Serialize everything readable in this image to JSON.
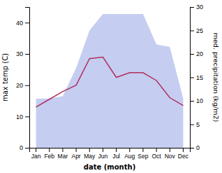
{
  "chart_data": {
    "type": "line",
    "categories": [
      "Jan",
      "Feb",
      "Mar",
      "Apr",
      "May",
      "Jun",
      "Jul",
      "Aug",
      "Sep",
      "Oct",
      "Nov",
      "Dec"
    ],
    "series": [
      {
        "type": "area",
        "axis": "y2",
        "color": "#c5cdf0",
        "values": [
          10.5,
          10.5,
          11.0,
          17.0,
          25.0,
          28.5,
          28.5,
          28.5,
          28.5,
          22.0,
          21.5,
          10.5
        ]
      },
      {
        "type": "line",
        "color": "#b03060",
        "values": [
          13.0,
          15.5,
          18.0,
          20.0,
          28.5,
          29.0,
          22.5,
          24.0,
          24.0,
          21.5,
          16.0,
          13.5
        ]
      }
    ],
    "xlabel": "date (month)",
    "ylabel": "max temp (C)",
    "y2label": "med. precipitation (kg/m2)",
    "ylim": [
      0,
      45
    ],
    "yticks": [
      0,
      10,
      20,
      30,
      40
    ],
    "y2lim": [
      0,
      30
    ],
    "y2ticks": [
      0,
      5,
      10,
      15,
      20,
      25,
      30
    ],
    "grid": false
  }
}
